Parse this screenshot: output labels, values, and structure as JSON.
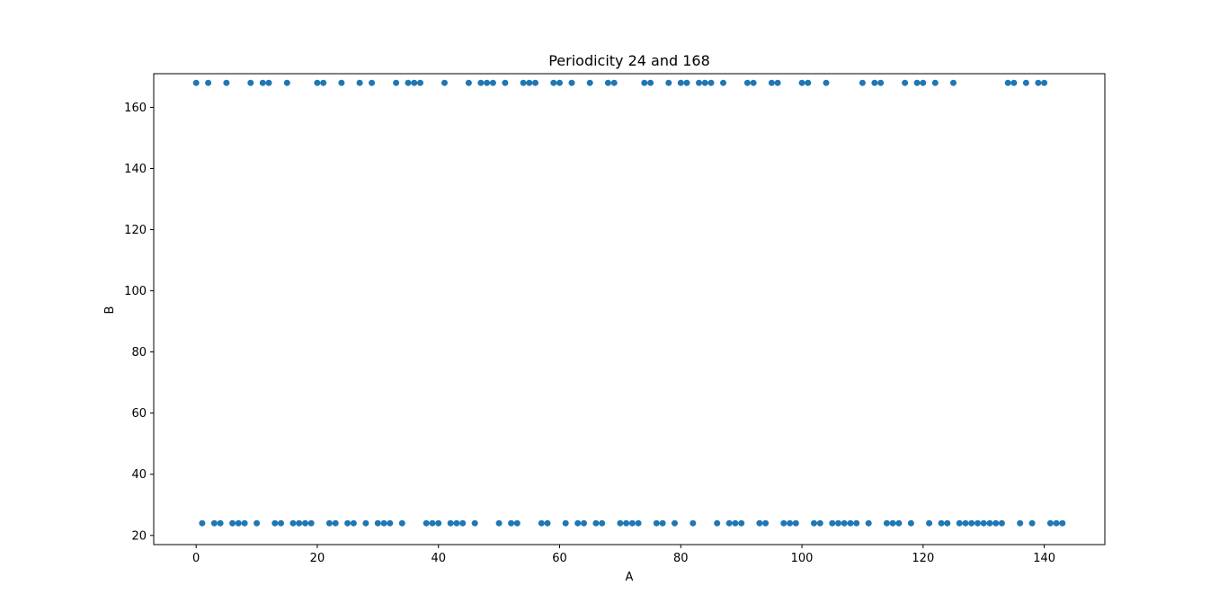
{
  "chart_data": {
    "type": "scatter",
    "title": "Periodicity 24 and 168",
    "xlabel": "A",
    "ylabel": "B",
    "xlim": [
      -7,
      150
    ],
    "ylim": [
      17,
      171
    ],
    "xticks": [
      0,
      20,
      40,
      60,
      80,
      100,
      120,
      140
    ],
    "yticks": [
      20,
      40,
      60,
      80,
      100,
      120,
      140,
      160
    ],
    "grid": false,
    "legend": "none",
    "marker_color": "#1f77b4",
    "x_high": [
      0,
      2,
      5,
      9,
      11,
      12,
      15,
      20,
      21,
      24,
      27,
      29,
      33,
      35,
      36,
      37,
      41,
      45,
      47,
      48,
      49,
      51,
      54,
      55,
      56,
      59,
      60,
      62,
      65,
      68,
      69,
      74,
      75,
      78,
      80,
      81,
      83,
      84,
      85,
      87,
      91,
      92,
      95,
      96,
      100,
      101,
      104,
      110,
      112,
      113,
      117,
      119,
      120,
      122,
      125,
      134,
      135,
      137,
      139,
      140
    ],
    "x_low": [
      1,
      3,
      4,
      6,
      7,
      8,
      10,
      13,
      14,
      16,
      17,
      18,
      19,
      22,
      23,
      25,
      26,
      28,
      30,
      31,
      32,
      34,
      38,
      39,
      40,
      42,
      43,
      44,
      46,
      50,
      52,
      53,
      57,
      58,
      61,
      63,
      64,
      66,
      67,
      70,
      71,
      72,
      73,
      76,
      77,
      79,
      82,
      86,
      88,
      89,
      90,
      93,
      94,
      97,
      98,
      99,
      102,
      103,
      105,
      106,
      107,
      108,
      109,
      111,
      114,
      115,
      116,
      118,
      121,
      123,
      124,
      126,
      127,
      128,
      129,
      130,
      131,
      132,
      133,
      136,
      138,
      141,
      142,
      143
    ],
    "y_high": 168,
    "y_low": 24
  }
}
